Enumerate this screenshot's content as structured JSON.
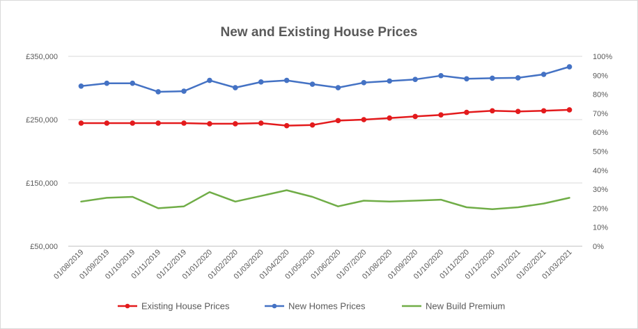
{
  "chart_data": {
    "type": "line",
    "title": "New and Existing House Prices",
    "categories": [
      "01/08/2019",
      "01/09/2019",
      "01/10/2019",
      "01/11/2019",
      "01/12/2019",
      "01/01/2020",
      "01/02/2020",
      "01/03/2020",
      "01/04/2020",
      "01/05/2020",
      "01/06/2020",
      "01/07/2020",
      "01/08/2020",
      "01/09/2020",
      "01/10/2020",
      "01/11/2020",
      "01/12/2020",
      "01/01/2021",
      "01/02/2021",
      "01/03/2021"
    ],
    "y_left": {
      "ylim": [
        50000,
        350000
      ],
      "ticks": [
        50000,
        150000,
        250000,
        350000
      ],
      "tick_labels": [
        "£50,000",
        "£150,000",
        "£250,000",
        "£350,000"
      ]
    },
    "y_right": {
      "ylim": [
        0,
        1
      ],
      "ticks": [
        0,
        0.1,
        0.2,
        0.3,
        0.4,
        0.5,
        0.6,
        0.7,
        0.8,
        0.9,
        1.0
      ],
      "tick_labels": [
        "0%",
        "10%",
        "20%",
        "30%",
        "40%",
        "50%",
        "60%",
        "70%",
        "80%",
        "90%",
        "100%"
      ]
    },
    "series": [
      {
        "name": "Existing House Prices",
        "axis": "left",
        "color": "#e31a1c",
        "marker": true,
        "values": [
          244500,
          244500,
          244500,
          244500,
          244500,
          243500,
          243500,
          244500,
          240500,
          241500,
          248500,
          250000,
          252500,
          255000,
          257500,
          261500,
          264000,
          263000,
          264000,
          265500
        ]
      },
      {
        "name": "New Homes Prices",
        "axis": "left",
        "color": "#4472c4",
        "marker": true,
        "values": [
          303000,
          307500,
          307500,
          294000,
          295000,
          312000,
          300500,
          309500,
          312000,
          306000,
          300500,
          308500,
          311000,
          313500,
          319500,
          314500,
          315500,
          316000,
          321500,
          333500
        ]
      },
      {
        "name": "New Build Premium",
        "axis": "right",
        "color": "#70ad47",
        "marker": false,
        "values": [
          0.235,
          0.255,
          0.26,
          0.2,
          0.21,
          0.285,
          0.235,
          0.265,
          0.295,
          0.26,
          0.21,
          0.24,
          0.235,
          0.24,
          0.245,
          0.205,
          0.195,
          0.205,
          0.225,
          0.255
        ]
      }
    ],
    "grid": true,
    "legend": "bottom"
  }
}
